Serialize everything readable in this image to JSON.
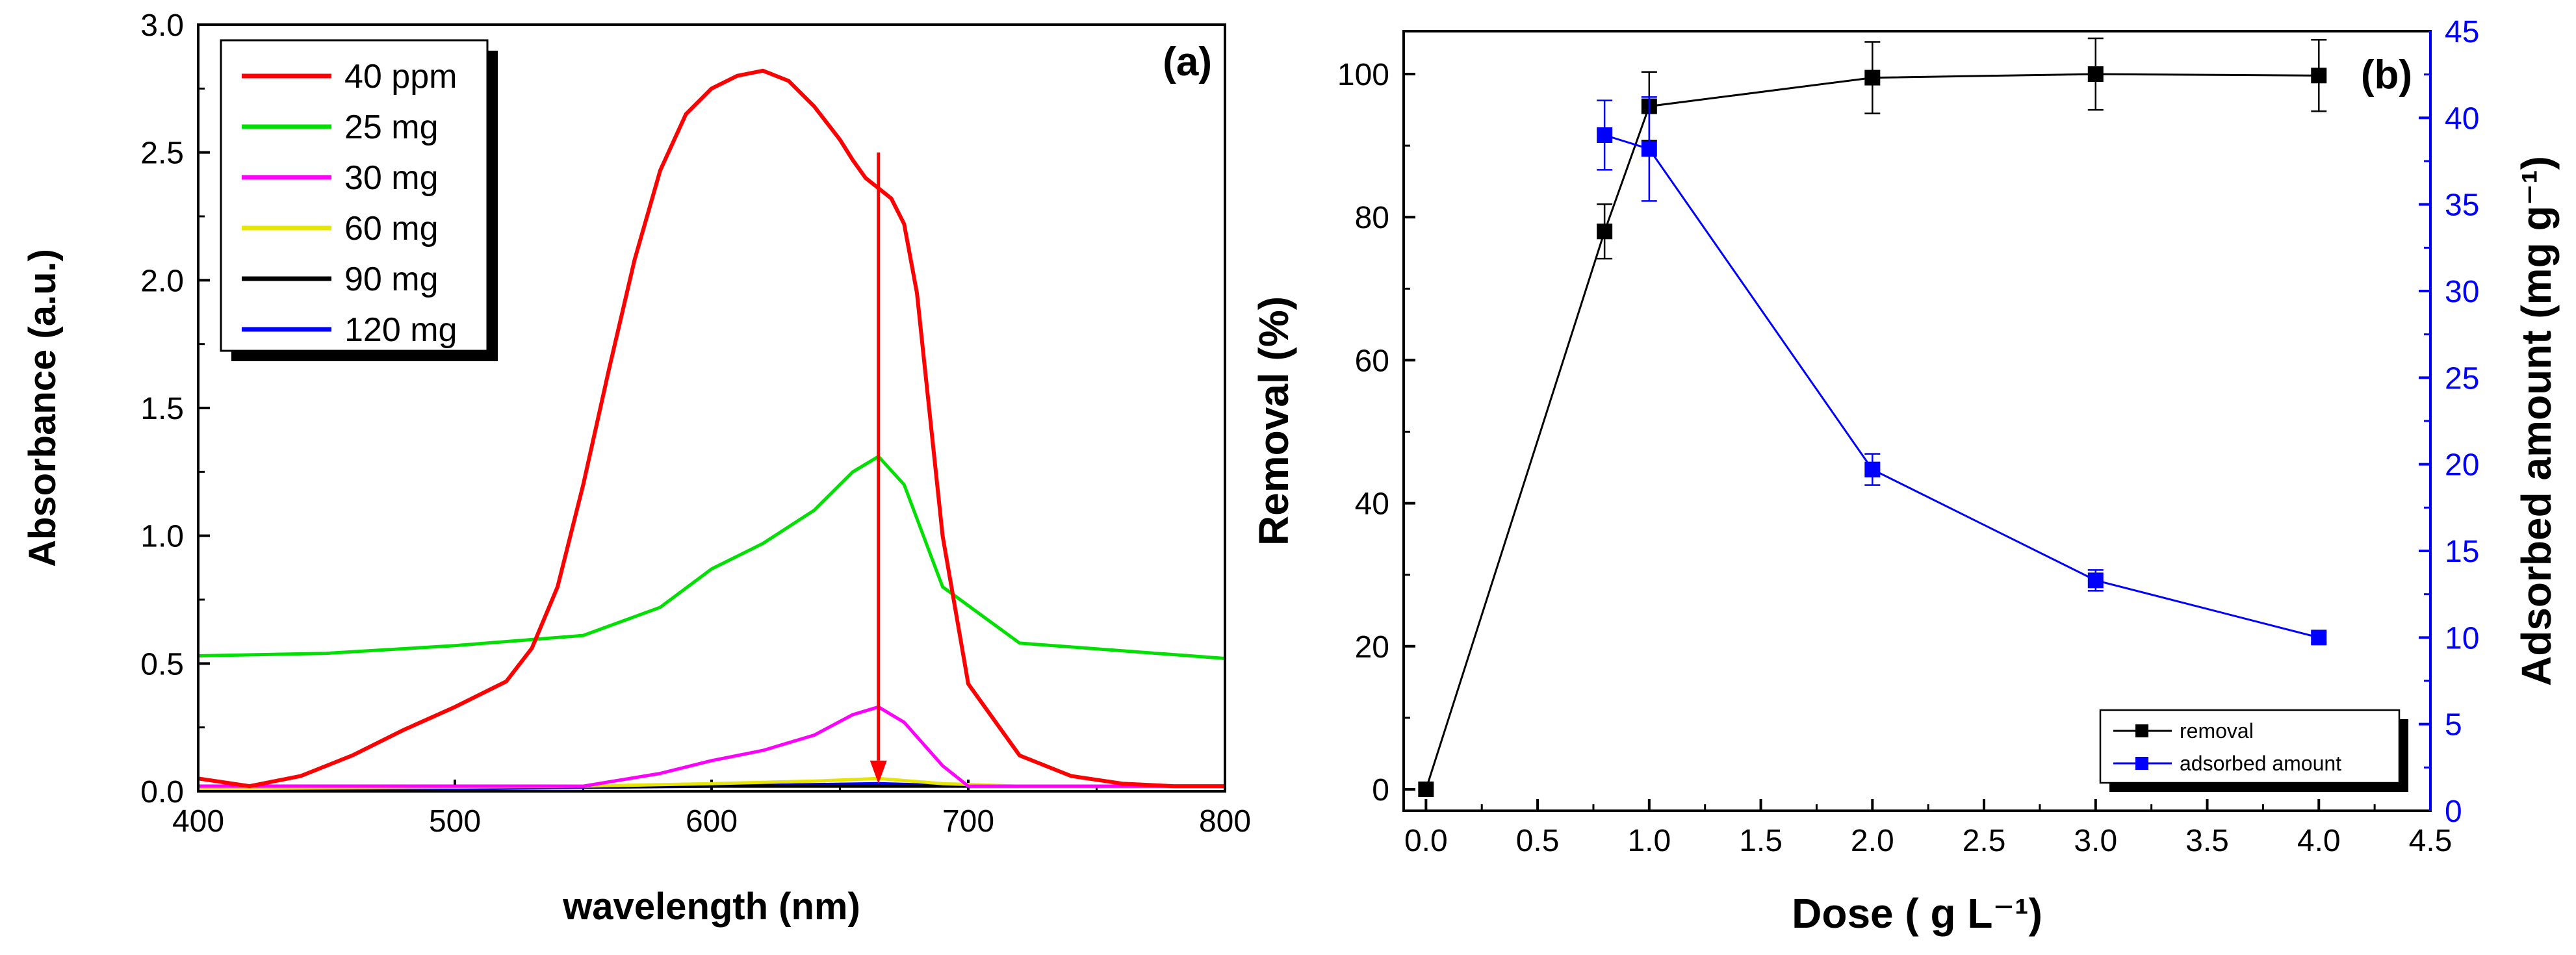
{
  "chart_data": [
    {
      "type": "line",
      "panel_label": "(a)",
      "xlabel": "wavelength (nm)",
      "ylabel": "Absorbance (a.u.)",
      "xlim": [
        400,
        800
      ],
      "ylim": [
        0,
        3.0
      ],
      "x_ticks": [
        "400",
        "500",
        "600",
        "700",
        "800"
      ],
      "y_ticks": [
        "0.0",
        "0.5",
        "1.0",
        "1.5",
        "2.0",
        "2.5",
        "3.0"
      ],
      "legend_position": "top-left",
      "annotation": "downward red arrow at 665 nm indicating decreasing absorbance with increasing dose",
      "series": [
        {
          "name": "40 ppm",
          "color": "#ff0000",
          "x": [
            400,
            420,
            440,
            460,
            480,
            500,
            520,
            530,
            540,
            550,
            560,
            570,
            580,
            590,
            600,
            610,
            620,
            630,
            640,
            650,
            655,
            660,
            665,
            670,
            675,
            680,
            690,
            700,
            720,
            740,
            760,
            780,
            800
          ],
          "y": [
            0.05,
            0.02,
            0.06,
            0.14,
            0.24,
            0.33,
            0.43,
            0.56,
            0.8,
            1.2,
            1.65,
            2.08,
            2.43,
            2.65,
            2.75,
            2.8,
            2.82,
            2.78,
            2.68,
            2.55,
            2.47,
            2.4,
            2.36,
            2.32,
            2.22,
            1.95,
            1.0,
            0.42,
            0.14,
            0.06,
            0.03,
            0.02,
            0.02
          ]
        },
        {
          "name": "25 mg",
          "color": "#00e000",
          "x": [
            400,
            450,
            500,
            550,
            580,
            600,
            620,
            640,
            655,
            665,
            675,
            690,
            720,
            760,
            800
          ],
          "y": [
            0.53,
            0.54,
            0.57,
            0.61,
            0.72,
            0.87,
            0.97,
            1.1,
            1.25,
            1.31,
            1.2,
            0.8,
            0.58,
            0.55,
            0.52
          ]
        },
        {
          "name": "30 mg",
          "color": "#ff00ff",
          "x": [
            400,
            550,
            580,
            600,
            620,
            640,
            655,
            665,
            675,
            690,
            700,
            800
          ],
          "y": [
            0.02,
            0.02,
            0.07,
            0.12,
            0.16,
            0.22,
            0.3,
            0.33,
            0.27,
            0.1,
            0.02,
            0.02
          ]
        },
        {
          "name": "60 mg",
          "color": "#e6e600",
          "x": [
            400,
            550,
            600,
            640,
            665,
            690,
            720,
            800
          ],
          "y": [
            0.01,
            0.02,
            0.03,
            0.04,
            0.05,
            0.03,
            0.02,
            0.02
          ]
        },
        {
          "name": "90 mg",
          "color": "#000000",
          "x": [
            400,
            500,
            600,
            665,
            700,
            800
          ],
          "y": [
            0.02,
            0.02,
            0.02,
            0.02,
            0.02,
            0.02
          ]
        },
        {
          "name": "120 mg",
          "color": "#0000ff",
          "x": [
            400,
            500,
            600,
            665,
            700,
            800
          ],
          "y": [
            0.01,
            0.01,
            0.02,
            0.03,
            0.02,
            0.02
          ]
        }
      ]
    },
    {
      "type": "line",
      "panel_label": "(b)",
      "xlabel": "Dose ( g L⁻¹)",
      "ylabel": "Removal (%)",
      "y2label": "Adsorbed amount (mg g⁻¹)",
      "xlim": [
        -0.1,
        4.5
      ],
      "ylim": [
        -3,
        106
      ],
      "y2lim": [
        0,
        45
      ],
      "x_ticks": [
        "0.0",
        "0.5",
        "1.0",
        "1.5",
        "2.0",
        "2.5",
        "3.0",
        "3.5",
        "4.0",
        "4.5"
      ],
      "y_ticks": [
        "0",
        "20",
        "40",
        "60",
        "80",
        "100"
      ],
      "y2_ticks": [
        "0",
        "5",
        "10",
        "15",
        "20",
        "25",
        "30",
        "35",
        "40",
        "45"
      ],
      "legend_position": "bottom-right",
      "series": [
        {
          "name": "removal",
          "color": "#000000",
          "axis": "left",
          "x": [
            0,
            0.8,
            1.0,
            2.0,
            3.0,
            4.0
          ],
          "y": [
            0,
            78,
            95.5,
            99.5,
            100,
            99.8
          ],
          "err": [
            0,
            3.8,
            4.8,
            5,
            5,
            5
          ]
        },
        {
          "name": "adsorbed amount",
          "color": "#0000ff",
          "axis": "right",
          "x": [
            0.8,
            1.0,
            2.0,
            3.0,
            4.0
          ],
          "y": [
            39,
            38.2,
            19.7,
            13.3,
            10
          ],
          "err": [
            2,
            3,
            0.9,
            0.6,
            0.3
          ]
        }
      ]
    }
  ]
}
